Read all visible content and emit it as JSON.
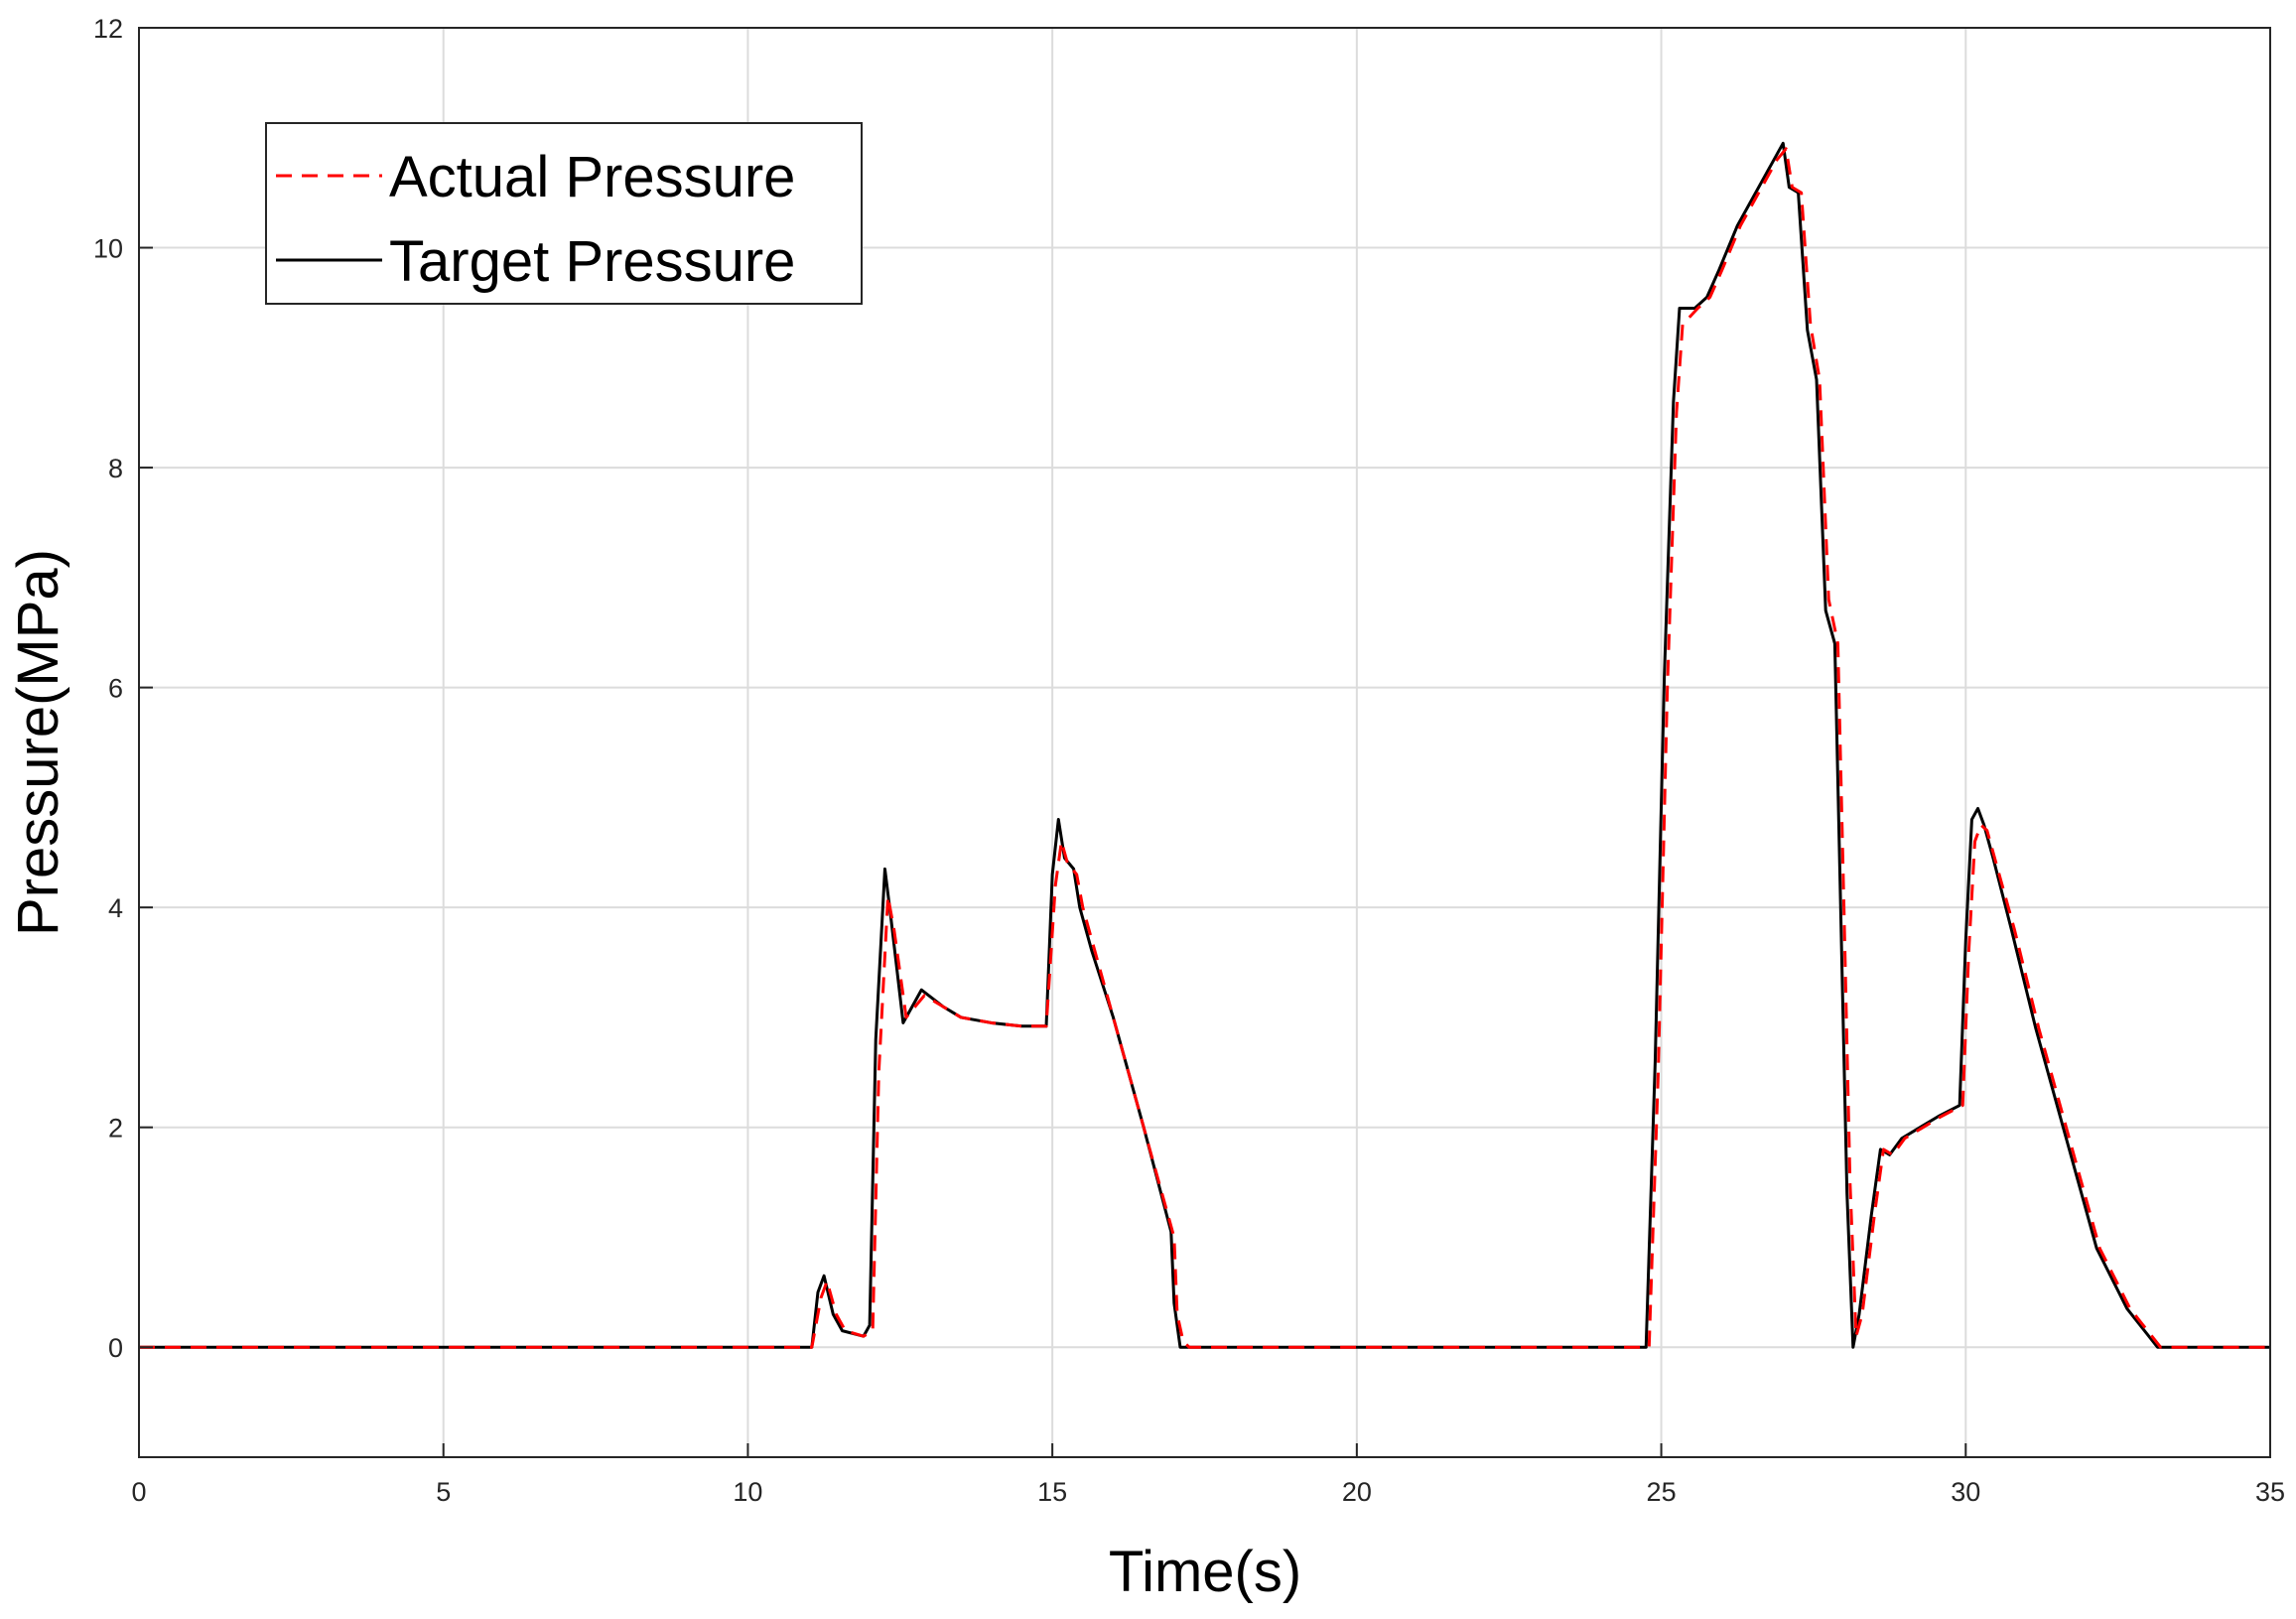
{
  "chart_data": {
    "type": "line",
    "title": "",
    "xlabel": "Time(s)",
    "ylabel": "Pressure(MPa)",
    "xlim": [
      0,
      35
    ],
    "ylim": [
      -1,
      12
    ],
    "xticks": [
      0,
      5,
      10,
      15,
      20,
      25,
      30,
      35
    ],
    "yticks": [
      0,
      2,
      4,
      6,
      8,
      10,
      12
    ],
    "grid": true,
    "legend_position": "top-left",
    "series": [
      {
        "name": "Actual Pressure",
        "color": "#ff0000",
        "style": "dashed",
        "x": [
          0,
          11.05,
          11.2,
          11.3,
          11.45,
          11.6,
          11.9,
          12.05,
          12.15,
          12.3,
          12.4,
          12.6,
          12.75,
          12.9,
          13.2,
          13.5,
          14,
          14.5,
          14.9,
          15.05,
          15.15,
          15.25,
          15.4,
          15.5,
          15.7,
          16,
          16.5,
          17,
          17.05,
          17.15,
          17.25,
          24.8,
          24.95,
          25.1,
          25.25,
          25.35,
          25.6,
          25.8,
          26,
          26.3,
          26.6,
          26.9,
          27.05,
          27.15,
          27.3,
          27.45,
          27.6,
          27.75,
          27.9,
          28,
          28.1,
          28.2,
          28.3,
          28.5,
          28.65,
          28.8,
          29,
          29.3,
          29.6,
          29.95,
          30.05,
          30.15,
          30.25,
          30.35,
          30.5,
          30.8,
          31.2,
          31.7,
          32.2,
          32.7,
          33.2,
          35
        ],
        "y": [
          0,
          0,
          0.45,
          0.6,
          0.3,
          0.15,
          0.1,
          0.15,
          2.5,
          4.1,
          3.8,
          3.0,
          3.1,
          3.2,
          3.1,
          3.0,
          2.95,
          2.92,
          2.92,
          4.2,
          4.6,
          4.4,
          4.3,
          4.0,
          3.6,
          3.0,
          2.0,
          1.0,
          0.3,
          0.05,
          0,
          0,
          2.5,
          6.0,
          8.5,
          9.3,
          9.45,
          9.55,
          9.8,
          10.2,
          10.5,
          10.8,
          10.9,
          10.55,
          10.5,
          9.3,
          8.8,
          6.8,
          6.4,
          4.0,
          1.5,
          0.1,
          0.3,
          1.2,
          1.8,
          1.75,
          1.9,
          2.0,
          2.1,
          2.2,
          3.6,
          4.6,
          4.75,
          4.7,
          4.4,
          3.8,
          2.9,
          1.9,
          0.9,
          0.35,
          0,
          0
        ]
      },
      {
        "name": "Target Pressure",
        "color": "#000000",
        "style": "solid",
        "x": [
          0,
          11.05,
          11.15,
          11.25,
          11.4,
          11.55,
          11.9,
          12.0,
          12.1,
          12.25,
          12.35,
          12.55,
          12.7,
          12.85,
          13.2,
          13.5,
          14,
          14.5,
          14.9,
          15.0,
          15.1,
          15.2,
          15.35,
          15.45,
          15.65,
          16,
          16.5,
          16.95,
          17.0,
          17.1,
          24.75,
          24.9,
          25.05,
          25.2,
          25.3,
          25.55,
          25.75,
          25.95,
          26.25,
          26.55,
          26.85,
          27.0,
          27.1,
          27.25,
          27.4,
          27.55,
          27.7,
          27.85,
          27.95,
          28.05,
          28.15,
          28.25,
          28.45,
          28.6,
          28.75,
          28.95,
          29.25,
          29.55,
          29.9,
          30.0,
          30.1,
          30.2,
          30.3,
          30.45,
          30.75,
          31.15,
          31.65,
          32.15,
          32.65,
          33.15,
          35
        ],
        "y": [
          0,
          0,
          0.5,
          0.65,
          0.3,
          0.15,
          0.1,
          0.2,
          2.8,
          4.35,
          3.9,
          2.95,
          3.1,
          3.25,
          3.1,
          3.0,
          2.95,
          2.92,
          2.92,
          4.3,
          4.8,
          4.45,
          4.35,
          4.0,
          3.6,
          3.0,
          2.0,
          1.05,
          0.4,
          0,
          0,
          2.6,
          6.1,
          8.6,
          9.45,
          9.45,
          9.55,
          9.8,
          10.2,
          10.5,
          10.8,
          10.95,
          10.55,
          10.5,
          9.25,
          8.8,
          6.7,
          6.4,
          3.9,
          1.4,
          0,
          0.3,
          1.2,
          1.8,
          1.75,
          1.9,
          2.0,
          2.1,
          2.2,
          3.7,
          4.8,
          4.9,
          4.75,
          4.45,
          3.8,
          2.9,
          1.9,
          0.9,
          0.35,
          0,
          0
        ]
      }
    ]
  }
}
